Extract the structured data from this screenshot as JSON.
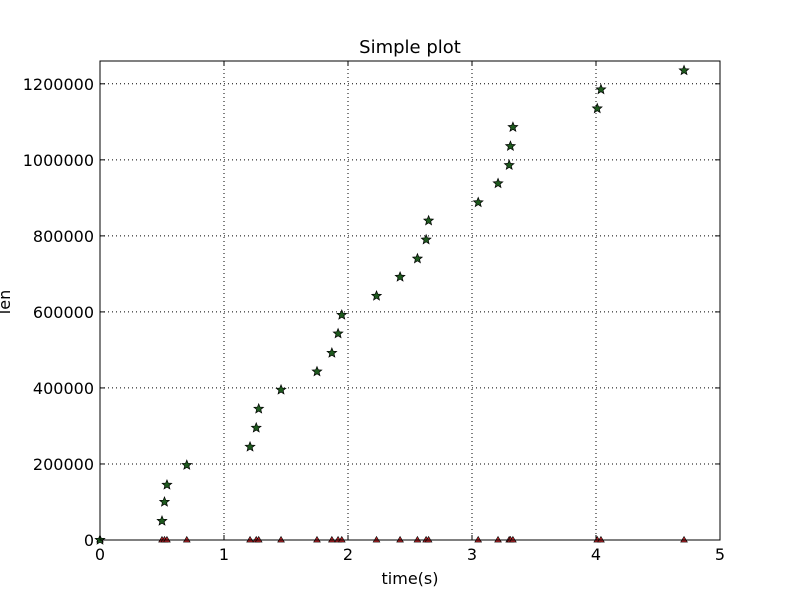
{
  "chart_data": {
    "type": "scatter",
    "title": "Simple plot",
    "xlabel": "time(s)",
    "ylabel": "len",
    "xlim": [
      0,
      5
    ],
    "ylim": [
      0,
      1260000
    ],
    "xticks": [
      0,
      1,
      2,
      3,
      4,
      5
    ],
    "xtick_labels": [
      "0",
      "1",
      "2",
      "3",
      "4",
      "5"
    ],
    "yticks": [
      0,
      200000,
      400000,
      600000,
      800000,
      1000000,
      1200000
    ],
    "ytick_labels": [
      "0",
      "200000",
      "400000",
      "600000",
      "800000",
      "1000000",
      "1200000"
    ],
    "grid": true,
    "series": [
      {
        "marker": "star",
        "color": "#1e5a1e",
        "x": [
          0.0,
          0.5,
          0.52,
          0.54,
          0.7,
          1.21,
          1.26,
          1.28,
          1.46,
          1.75,
          1.87,
          1.92,
          1.95,
          2.23,
          2.42,
          2.56,
          2.63,
          2.65,
          3.05,
          3.21,
          3.3,
          3.31,
          3.33,
          4.01,
          4.04,
          4.71
        ],
        "y": [
          0,
          50000,
          100000,
          145000,
          197000,
          245000,
          295000,
          345000,
          395000,
          443000,
          492000,
          543000,
          592000,
          642000,
          692000,
          740000,
          790000,
          840000,
          888000,
          938000,
          986000,
          1036000,
          1086000,
          1135000,
          1185000,
          1235000
        ]
      },
      {
        "marker": "triangle",
        "color": "#c0262a",
        "x": [
          0.0,
          0.5,
          0.52,
          0.54,
          0.7,
          1.21,
          1.26,
          1.28,
          1.46,
          1.75,
          1.87,
          1.92,
          1.95,
          2.23,
          2.42,
          2.56,
          2.63,
          2.65,
          3.05,
          3.21,
          3.3,
          3.31,
          3.33,
          4.01,
          4.04,
          4.71
        ],
        "y": [
          0,
          0,
          0,
          0,
          0,
          0,
          0,
          0,
          0,
          0,
          0,
          0,
          0,
          0,
          0,
          0,
          0,
          0,
          0,
          0,
          0,
          0,
          0,
          0,
          0,
          0
        ]
      }
    ]
  }
}
